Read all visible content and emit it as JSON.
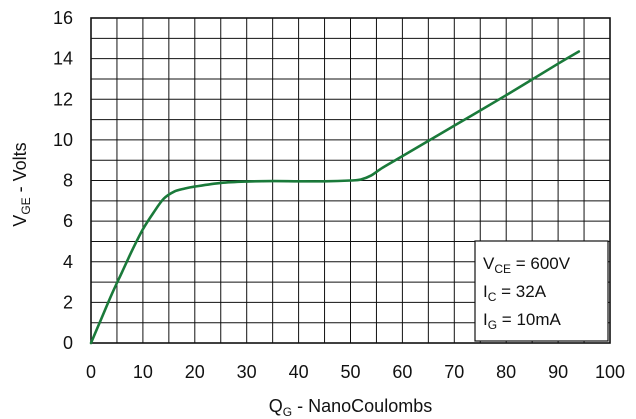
{
  "chart_data": {
    "type": "line",
    "xlabel": {
      "main": "Q",
      "sub": "G",
      "rest": " - NanoCoulombs"
    },
    "ylabel": {
      "main": "V",
      "sub": "GE",
      "rest": " - Volts"
    },
    "xlim": [
      0,
      100
    ],
    "ylim": [
      0,
      16
    ],
    "x_ticks": [
      0,
      10,
      20,
      30,
      40,
      50,
      60,
      70,
      80,
      90,
      100
    ],
    "y_ticks": [
      0,
      2,
      4,
      6,
      8,
      10,
      12,
      14,
      16
    ],
    "x_grid_step": 5,
    "y_grid_step": 1,
    "grid": true,
    "series": [
      {
        "color": "#1a7a3a",
        "x": [
          0,
          2,
          4,
          6,
          8,
          10,
          12,
          14,
          16,
          18,
          20,
          25,
          30,
          35,
          40,
          45,
          50,
          52,
          54,
          56,
          60,
          70,
          80,
          90,
          94
        ],
        "y": [
          0,
          1.2,
          2.4,
          3.5,
          4.6,
          5.6,
          6.4,
          7.1,
          7.45,
          7.6,
          7.7,
          7.88,
          7.95,
          7.97,
          7.96,
          7.96,
          8.0,
          8.05,
          8.25,
          8.6,
          9.2,
          10.7,
          12.2,
          13.75,
          14.35
        ]
      }
    ],
    "annotation": {
      "position": "bottom-right",
      "lines": [
        {
          "main": "V",
          "sub": "CE",
          "rest": " = 600V"
        },
        {
          "main": "I",
          "sub": "C",
          "rest": " = 32A"
        },
        {
          "main": "I",
          "sub": "G",
          "rest": " = 10mA"
        }
      ]
    }
  }
}
